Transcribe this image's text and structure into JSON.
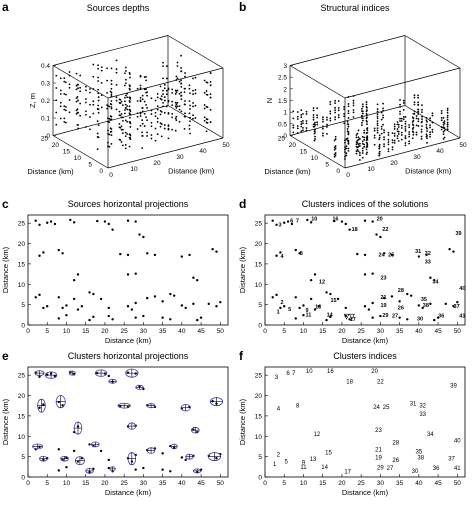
{
  "panels": [
    {
      "letter": "a",
      "title": "Sources depths"
    },
    {
      "letter": "b",
      "title": "Structural indices"
    },
    {
      "letter": "c",
      "title": "Sources horizontal projections"
    },
    {
      "letter": "d",
      "title": "Clusters indices of the solutions"
    },
    {
      "letter": "e",
      "title": "Clusters horizontal projections"
    },
    {
      "letter": "f",
      "title": "Clusters indices"
    }
  ],
  "chart_data": [
    {
      "type": "scatter",
      "title": "Sources depths",
      "projection": "3d",
      "xlabel": "Distance (km)",
      "ylabel": "Distance (km)",
      "zlabel": "Z, m",
      "xlim": [
        0,
        50
      ],
      "ylim": [
        0,
        25
      ],
      "zlim": [
        0,
        0.4
      ],
      "x_ticks": [
        "0",
        "10",
        "20",
        "30",
        "40",
        "50"
      ],
      "y_ticks": [
        "0",
        "5",
        "10",
        "15",
        "20",
        "25"
      ],
      "z_ticks": [
        "0",
        "0.1",
        "0.2",
        "0.3",
        "0.4"
      ],
      "grid": true
    },
    {
      "type": "scatter",
      "title": "Structural indices",
      "projection": "3d",
      "xlabel": "Distance (km)",
      "ylabel": "Distance (km)",
      "zlabel": "N",
      "xlim": [
        0,
        50
      ],
      "ylim": [
        0,
        25
      ],
      "zlim": [
        0,
        3
      ],
      "x_ticks": [
        "0",
        "10",
        "20",
        "30",
        "40",
        "50"
      ],
      "y_ticks": [
        "0",
        "5",
        "10",
        "15",
        "20",
        "25"
      ],
      "z_ticks": [
        "0",
        "0.5",
        "1",
        "1.5",
        "2",
        "2.5",
        "3"
      ],
      "grid": true
    },
    {
      "type": "scatter",
      "title": "Sources horizontal projections",
      "xlabel": "Distance (km)",
      "ylabel": "Distance (km)",
      "xlim": [
        0,
        52
      ],
      "ylim": [
        0,
        27
      ],
      "x_ticks": [
        0,
        5,
        10,
        15,
        20,
        25,
        30,
        35,
        40,
        45,
        50
      ],
      "y_ticks": [
        0,
        5,
        10,
        15,
        20,
        25
      ],
      "grid": false
    },
    {
      "type": "scatter",
      "title": "Clusters indices of the solutions",
      "xlabel": "Distance (km)",
      "ylabel": "Distance (km)",
      "xlim": [
        0,
        52
      ],
      "ylim": [
        0,
        27
      ],
      "x_ticks": [
        0,
        5,
        10,
        15,
        20,
        25,
        30,
        35,
        40,
        45,
        50
      ],
      "y_ticks": [
        0,
        5,
        10,
        15,
        20,
        25
      ],
      "grid": false
    },
    {
      "type": "scatter",
      "title": "Clusters horizontal projections",
      "xlabel": "Distance (km)",
      "ylabel": "Distance (km)",
      "xlim": [
        0,
        52
      ],
      "ylim": [
        0,
        27
      ],
      "x_ticks": [
        0,
        5,
        10,
        15,
        20,
        25,
        30,
        35,
        40,
        45,
        50
      ],
      "y_ticks": [
        0,
        5,
        10,
        15,
        20,
        25
      ],
      "grid": false
    },
    {
      "type": "scatter",
      "title": "Clusters indices",
      "xlabel": "Distance (km)",
      "ylabel": "Distance (km)",
      "xlim": [
        0,
        52
      ],
      "ylim": [
        0,
        27
      ],
      "x_ticks": [
        0,
        5,
        10,
        15,
        20,
        25,
        30,
        35,
        40,
        45,
        50
      ],
      "y_ticks": [
        0,
        5,
        10,
        15,
        20,
        25
      ],
      "grid": false
    }
  ],
  "clusters": [
    {
      "id": "1",
      "x": 2.5,
      "y": 3.2
    },
    {
      "id": "2",
      "x": 3.5,
      "y": 5.5
    },
    {
      "id": "3",
      "x": 3,
      "y": 24.5
    },
    {
      "id": "4",
      "x": 3.5,
      "y": 16.8
    },
    {
      "id": "5",
      "x": 5.5,
      "y": 3.8
    },
    {
      "id": "6",
      "x": 6,
      "y": 25.5
    },
    {
      "id": "7",
      "x": 7.5,
      "y": 25.5
    },
    {
      "id": "8",
      "x": 8.5,
      "y": 17.5
    },
    {
      "id": "9",
      "x": 10,
      "y": 3.6
    },
    {
      "id": "10",
      "x": 11.5,
      "y": 26
    },
    {
      "id": "11",
      "x": 10,
      "y": 2.5
    },
    {
      "id": "12",
      "x": 13.5,
      "y": 10.5
    },
    {
      "id": "13",
      "x": 12.5,
      "y": 4.4
    },
    {
      "id": "14",
      "x": 15.5,
      "y": 2.5
    },
    {
      "id": "15",
      "x": 16.5,
      "y": 6
    },
    {
      "id": "16",
      "x": 17,
      "y": 26
    },
    {
      "id": "17",
      "x": 21.5,
      "y": 1.4
    },
    {
      "id": "18",
      "x": 22,
      "y": 23.5
    },
    {
      "id": "19",
      "x": 29.5,
      "y": 4.8
    },
    {
      "id": "20",
      "x": 28.5,
      "y": 26
    },
    {
      "id": "21",
      "x": 29.5,
      "y": 6.8
    },
    {
      "id": "22",
      "x": 30,
      "y": 23.5
    },
    {
      "id": "23",
      "x": 29.5,
      "y": 11.5
    },
    {
      "id": "24",
      "x": 29,
      "y": 17.2
    },
    {
      "id": "25",
      "x": 31.5,
      "y": 17.2
    },
    {
      "id": "26",
      "x": 34,
      "y": 4.2
    },
    {
      "id": "27",
      "x": 32.5,
      "y": 2.2
    },
    {
      "id": "28",
      "x": 34,
      "y": 8.5
    },
    {
      "id": "29",
      "x": 30,
      "y": 2.3
    },
    {
      "id": "30",
      "x": 39,
      "y": 1.5
    },
    {
      "id": "31",
      "x": 38.5,
      "y": 18
    },
    {
      "id": "32",
      "x": 41,
      "y": 17.5
    },
    {
      "id": "33",
      "x": 41,
      "y": 15.5
    },
    {
      "id": "34",
      "x": 43,
      "y": 10.5
    },
    {
      "id": "35",
      "x": 40,
      "y": 6.2
    },
    {
      "id": "36",
      "x": 44.5,
      "y": 2.2
    },
    {
      "id": "37",
      "x": 48.5,
      "y": 4.6
    },
    {
      "id": "38",
      "x": 40.5,
      "y": 4.8
    },
    {
      "id": "39",
      "x": 49,
      "y": 22.5
    },
    {
      "id": "40",
      "x": 50,
      "y": 9
    },
    {
      "id": "41",
      "x": 50,
      "y": 2.2
    }
  ],
  "ellipses": [
    {
      "x": 3,
      "y": 25.5,
      "rx": 1.2,
      "ry": 0.6
    },
    {
      "x": 6,
      "y": 25,
      "rx": 1.5,
      "ry": 0.8
    },
    {
      "x": 11.5,
      "y": 25.5,
      "rx": 0.8,
      "ry": 0.5
    },
    {
      "x": 19,
      "y": 25.5,
      "rx": 1.5,
      "ry": 0.8
    },
    {
      "x": 22,
      "y": 23.5,
      "rx": 1.0,
      "ry": 0.5
    },
    {
      "x": 27,
      "y": 25.5,
      "rx": 1.6,
      "ry": 1.0
    },
    {
      "x": 29,
      "y": 22,
      "rx": 1.0,
      "ry": 0.5
    },
    {
      "x": 3.5,
      "y": 17.5,
      "rx": 1.0,
      "ry": 1.6
    },
    {
      "x": 8.5,
      "y": 18.5,
      "rx": 1.2,
      "ry": 1.5
    },
    {
      "x": 25,
      "y": 17.5,
      "rx": 1.6,
      "ry": 0.6
    },
    {
      "x": 32,
      "y": 17.5,
      "rx": 1.0,
      "ry": 0.5
    },
    {
      "x": 41,
      "y": 17,
      "rx": 1.2,
      "ry": 0.8
    },
    {
      "x": 49,
      "y": 18.5,
      "rx": 1.6,
      "ry": 1.0
    },
    {
      "x": 13,
      "y": 12,
      "rx": 1.0,
      "ry": 1.5
    },
    {
      "x": 27,
      "y": 12.5,
      "rx": 1.0,
      "ry": 0.8
    },
    {
      "x": 43.5,
      "y": 11.5,
      "rx": 1.0,
      "ry": 0.7
    },
    {
      "x": 2.5,
      "y": 7.5,
      "rx": 1.3,
      "ry": 0.6
    },
    {
      "x": 4,
      "y": 4.5,
      "rx": 1.0,
      "ry": 0.6
    },
    {
      "x": 9.5,
      "y": 4.5,
      "rx": 1.0,
      "ry": 0.6
    },
    {
      "x": 13.5,
      "y": 4,
      "rx": 1.2,
      "ry": 1.0
    },
    {
      "x": 17.5,
      "y": 8,
      "rx": 1.0,
      "ry": 0.6
    },
    {
      "x": 27,
      "y": 4.5,
      "rx": 1.0,
      "ry": 1.5
    },
    {
      "x": 32,
      "y": 6.5,
      "rx": 1.0,
      "ry": 0.7
    },
    {
      "x": 38,
      "y": 7.5,
      "rx": 0.8,
      "ry": 0.6
    },
    {
      "x": 42,
      "y": 5,
      "rx": 1.0,
      "ry": 0.6
    },
    {
      "x": 48.5,
      "y": 5,
      "rx": 1.6,
      "ry": 1.0
    },
    {
      "x": 16,
      "y": 1.5,
      "rx": 1.0,
      "ry": 0.6
    },
    {
      "x": 22,
      "y": 2,
      "rx": 0.7,
      "ry": 0.5
    },
    {
      "x": 44,
      "y": 1.5,
      "rx": 1.0,
      "ry": 0.5
    }
  ],
  "sources": [
    [
      2,
      25.6
    ],
    [
      3,
      24.6
    ],
    [
      5,
      25.1
    ],
    [
      6,
      25.4
    ],
    [
      7,
      24.8
    ],
    [
      11,
      25.8
    ],
    [
      12,
      25.2
    ],
    [
      18,
      25.5
    ],
    [
      20,
      25.4
    ],
    [
      21,
      24.8
    ],
    [
      26,
      25.6
    ],
    [
      28,
      25.4
    ],
    [
      22,
      23.4
    ],
    [
      29,
      22.2
    ],
    [
      30,
      21.6
    ],
    [
      3,
      17
    ],
    [
      4,
      17.8
    ],
    [
      8,
      18.4
    ],
    [
      9,
      17.6
    ],
    [
      24,
      17.4
    ],
    [
      26,
      17.2
    ],
    [
      31,
      17.6
    ],
    [
      33,
      17.2
    ],
    [
      40,
      16.8
    ],
    [
      42,
      17.2
    ],
    [
      48,
      18.6
    ],
    [
      49,
      18
    ],
    [
      12,
      11
    ],
    [
      13,
      12.4
    ],
    [
      26,
      12.4
    ],
    [
      28,
      12.6
    ],
    [
      43,
      11.6
    ],
    [
      44,
      11
    ],
    [
      2,
      6.8
    ],
    [
      3,
      7.4
    ],
    [
      4,
      4.2
    ],
    [
      5,
      4.6
    ],
    [
      8,
      6.8
    ],
    [
      9,
      4.2
    ],
    [
      10,
      4.8
    ],
    [
      12,
      6.4
    ],
    [
      13,
      3.8
    ],
    [
      14,
      4.6
    ],
    [
      16,
      8
    ],
    [
      17,
      7.6
    ],
    [
      19,
      6.4
    ],
    [
      21,
      4.2
    ],
    [
      26,
      4.6
    ],
    [
      27,
      3.8
    ],
    [
      28,
      5.4
    ],
    [
      31,
      6.6
    ],
    [
      33,
      7
    ],
    [
      35,
      5.8
    ],
    [
      37,
      7.6
    ],
    [
      38,
      7.2
    ],
    [
      40,
      4.8
    ],
    [
      41,
      4.2
    ],
    [
      43,
      5.2
    ],
    [
      47,
      5.2
    ],
    [
      49,
      4.6
    ],
    [
      50,
      5.6
    ],
    [
      8,
      1.6
    ],
    [
      10,
      2.4
    ],
    [
      16,
      1.2
    ],
    [
      17,
      2
    ],
    [
      21,
      2.2
    ],
    [
      22,
      1.4
    ],
    [
      28,
      1.8
    ],
    [
      30,
      2.2
    ],
    [
      35,
      1.8
    ],
    [
      37,
      1.4
    ],
    [
      44,
      1.2
    ],
    [
      45,
      1.8
    ]
  ]
}
